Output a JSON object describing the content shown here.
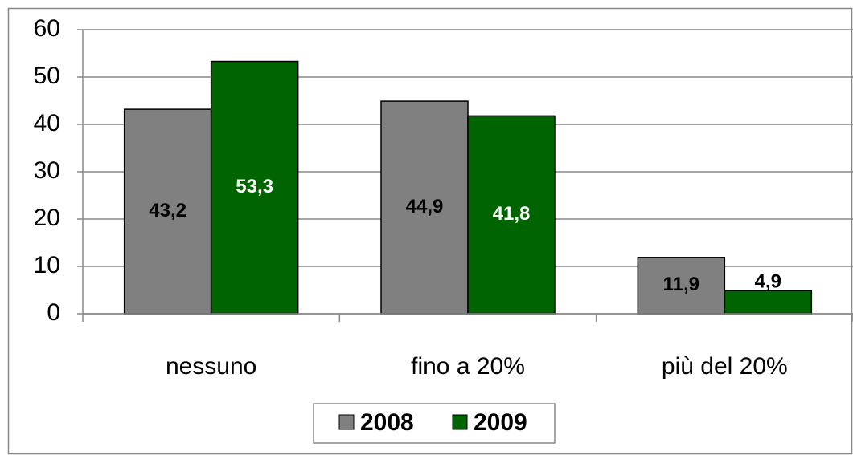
{
  "chart_data": {
    "type": "bar",
    "categories": [
      "nessuno",
      "fino a 20%",
      "più del 20%"
    ],
    "series": [
      {
        "name": "2008",
        "color": "#808080",
        "values": [
          43.2,
          44.9,
          11.9
        ],
        "value_labels": [
          "43,2",
          "44,9",
          "11,9"
        ]
      },
      {
        "name": "2009",
        "color": "#006400",
        "values": [
          53.3,
          41.8,
          4.9
        ],
        "value_labels": [
          "53,3",
          "41,8",
          "4,9"
        ]
      }
    ],
    "ylim": [
      0,
      60
    ],
    "yticks": [
      0,
      10,
      20,
      30,
      40,
      50,
      60
    ],
    "grid": true,
    "legend": "bottom"
  }
}
